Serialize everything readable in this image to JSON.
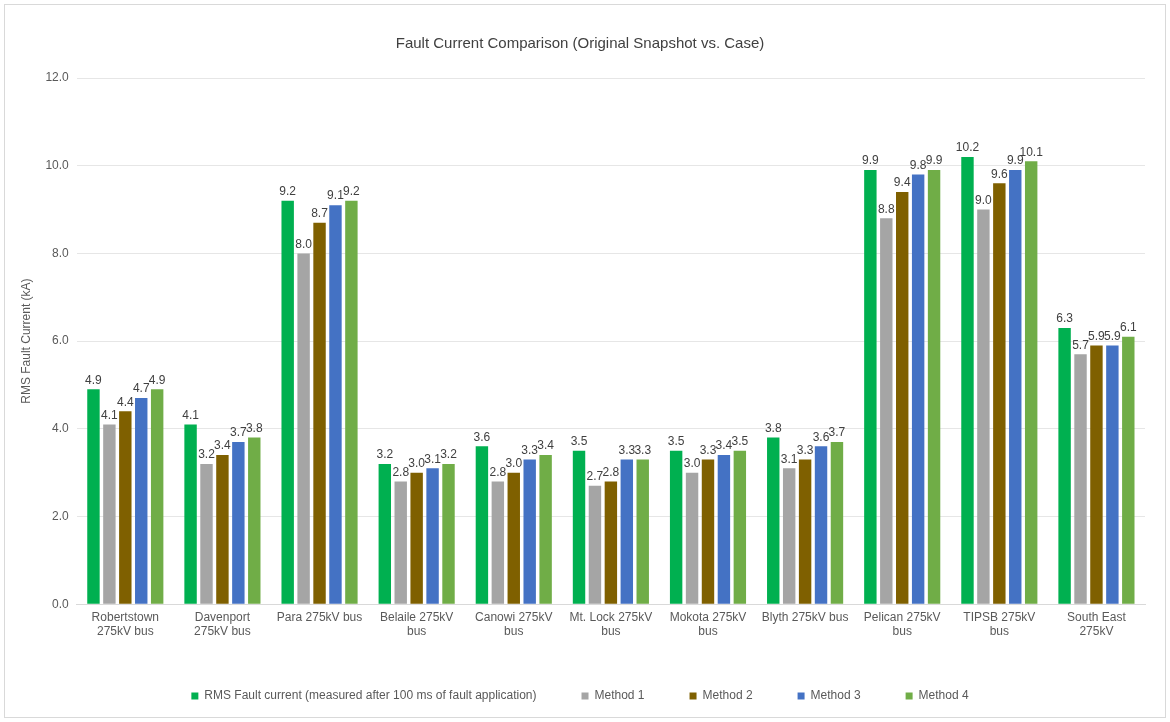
{
  "chart_data": {
    "type": "bar",
    "title": "Fault Current Comparison (Original Snapshot vs. Case)",
    "ylabel": "RMS Fault Current (kA)",
    "categories": [
      "Robertstown 275kV bus",
      "Davenport 275kV bus",
      "Para 275kV bus",
      "Belaile 275kV bus",
      "Canowi 275kV bus",
      "Mt. Lock 275kV bus",
      "Mokota 275kV bus",
      "Blyth 275kV bus",
      "Pelican 275kV bus",
      "TIPSB 275kV bus",
      "South East 275kV"
    ],
    "series": [
      {
        "name": "RMS Fault current (measured after 100 ms of fault application)",
        "color": "#00b050",
        "values": [
          4.9,
          4.1,
          9.2,
          3.2,
          3.6,
          3.5,
          3.5,
          3.8,
          9.9,
          10.2,
          6.3
        ],
        "value_labels": [
          "4.9",
          "4.1",
          "9.2",
          "3.2",
          "3.6",
          "3.5",
          "3.5",
          "3.8",
          "9.9",
          "10.2",
          "6.3"
        ]
      },
      {
        "name": "Method 1",
        "color": "#a5a5a5",
        "values": [
          4.1,
          3.2,
          8.0,
          2.8,
          2.8,
          2.7,
          3.0,
          3.1,
          8.8,
          9.0,
          5.7
        ],
        "value_labels": [
          "4.1",
          "3.2",
          "8.0",
          "2.8",
          "2.8",
          "2.7",
          "3.0",
          "3.1",
          "8.8",
          "9.0",
          "5.7"
        ]
      },
      {
        "name": "Method 2",
        "color": "#7f6000",
        "values": [
          4.4,
          3.4,
          8.7,
          3.0,
          3.0,
          2.8,
          3.3,
          3.3,
          9.4,
          9.6,
          5.9
        ],
        "value_labels": [
          "4.4",
          "3.4",
          "8.7",
          "3.0",
          "3.0",
          "2.8",
          "3.3",
          "3.3",
          "9.4",
          "9.6",
          "5.9"
        ]
      },
      {
        "name": "Method 3",
        "color": "#4472c4",
        "values": [
          4.7,
          3.7,
          9.1,
          3.1,
          3.3,
          3.3,
          3.4,
          3.6,
          9.8,
          9.9,
          5.9
        ],
        "value_labels": [
          "4.7",
          "3.7",
          "9.1",
          "3.1",
          "3.3",
          "3.3",
          "3.4",
          "3.6",
          "9.8",
          "9.9",
          "5.9"
        ]
      },
      {
        "name": "Method 4",
        "color": "#70ad47",
        "values": [
          4.9,
          3.8,
          9.2,
          3.2,
          3.4,
          3.3,
          3.5,
          3.7,
          9.9,
          10.1,
          6.1
        ],
        "value_labels": [
          "4.9",
          "3.8",
          "9.2",
          "3.2",
          "3.4",
          "3.3",
          "3.5",
          "3.7",
          "9.9",
          "10.1",
          "6.1"
        ]
      }
    ],
    "ylim": [
      0,
      12
    ],
    "yticks": [
      {
        "value": 0,
        "label": "0.0"
      },
      {
        "value": 2,
        "label": "2.0"
      },
      {
        "value": 4,
        "label": "4.0"
      },
      {
        "value": 6,
        "label": "6.0"
      },
      {
        "value": 8,
        "label": "8.0"
      },
      {
        "value": 10,
        "label": "10.0"
      },
      {
        "value": 12,
        "label": "12.0"
      }
    ],
    "grid": "y",
    "legend": "bottom"
  }
}
